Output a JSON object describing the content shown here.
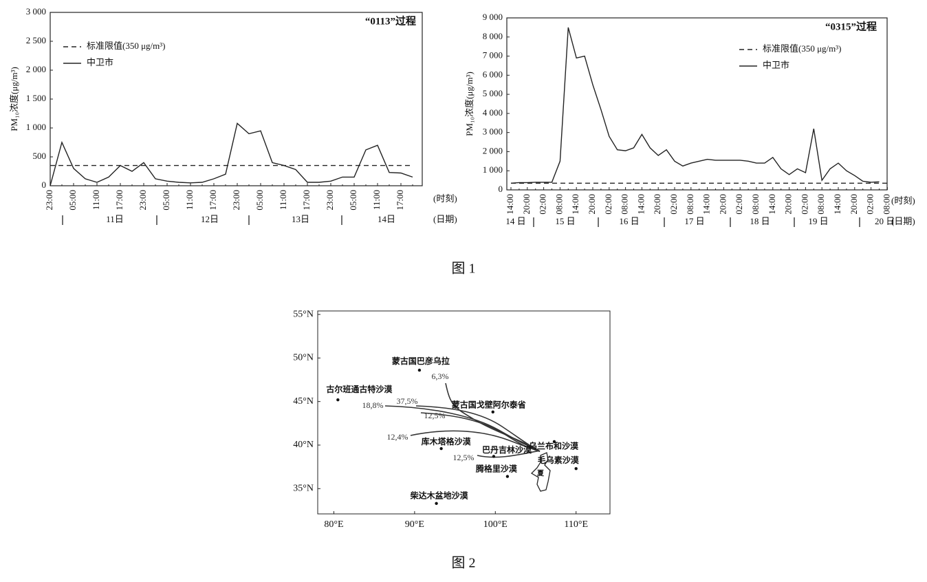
{
  "chart_data": [
    {
      "type": "line",
      "title": "“0113”过程",
      "ylabel": "PM₁₀浓度(μg/m³)",
      "xlabel": "(时刻)",
      "date_label": "(日期)",
      "dates": [
        "11日",
        "12日",
        "13日",
        "14日"
      ],
      "categories": [
        "23:00",
        null,
        "05:00",
        null,
        "11:00",
        null,
        "17:00",
        null,
        "23:00",
        null,
        "05:00",
        null,
        "11:00",
        null,
        "17:00",
        null,
        "23:00",
        null,
        "05:00",
        null,
        "11:00",
        null,
        "17:00",
        null,
        "23:00",
        null,
        "05:00",
        null,
        "11:00",
        null,
        "17:00",
        null
      ],
      "series": [
        {
          "name": "标准限值(350 μg/m³)",
          "color": "#222",
          "dashed": true,
          "values": [
            350,
            350,
            350,
            350,
            350,
            350,
            350,
            350,
            350,
            350,
            350,
            350,
            350,
            350,
            350,
            350,
            350,
            350,
            350,
            350,
            350,
            350,
            350,
            350,
            350,
            350,
            350,
            350,
            350,
            350,
            350,
            350
          ]
        },
        {
          "name": "中卫市",
          "color": "#222",
          "dashed": false,
          "values": [
            0,
            750,
            300,
            120,
            60,
            150,
            350,
            250,
            400,
            120,
            80,
            60,
            50,
            60,
            120,
            200,
            1080,
            900,
            950,
            400,
            350,
            280,
            60,
            60,
            80,
            150,
            150,
            620,
            700,
            230,
            220,
            150
          ]
        }
      ],
      "ylim": [
        0,
        3000
      ],
      "yticks": [
        0,
        500,
        {
          "value": 1000,
          "label": "1 000"
        },
        {
          "value": 1500,
          "label": "1 500"
        },
        {
          "value": 2000,
          "label": "2 000"
        },
        {
          "value": 2500,
          "label": "2 500"
        },
        {
          "value": 3000,
          "label": "3 000"
        }
      ]
    },
    {
      "type": "line",
      "title": "“0315”过程",
      "ylabel": "PM₁₀浓度(μg/m³)",
      "xlabel": "(时刻)",
      "date_label": "(日期)",
      "dates": [
        "14 日",
        "15 日",
        "16 日",
        "17 日",
        "18 日",
        "19 日",
        "20 日"
      ],
      "categories": [
        "14:00",
        null,
        "20:00",
        null,
        "02:00",
        null,
        "08:00",
        null,
        "14:00",
        null,
        "20:00",
        null,
        "02:00",
        null,
        "08:00",
        null,
        "14:00",
        null,
        "20:00",
        null,
        "02:00",
        null,
        "08:00",
        null,
        "14:00",
        null,
        "20:00",
        null,
        "02:00",
        null,
        "08:00",
        null,
        "14:00",
        null,
        "20:00",
        null,
        "02:00",
        null,
        "08:00",
        null,
        "14:00",
        null,
        "20:00",
        null,
        "02:00",
        null,
        "08:00"
      ],
      "series": [
        {
          "name": "标准限值(350 μg/m³)",
          "color": "#222",
          "dashed": true,
          "values": [
            350,
            350,
            350,
            350,
            350,
            350,
            350,
            350,
            350,
            350,
            350,
            350,
            350,
            350,
            350,
            350,
            350,
            350,
            350,
            350,
            350,
            350,
            350,
            350,
            350,
            350,
            350,
            350,
            350,
            350,
            350,
            350,
            350,
            350,
            350,
            350,
            350,
            350,
            350,
            350,
            350,
            350,
            350,
            350,
            350,
            350,
            350
          ]
        },
        {
          "name": "中卫市",
          "color": "#222",
          "dashed": false,
          "values": [
            350,
            380,
            380,
            400,
            400,
            400,
            1500,
            8500,
            6900,
            7000,
            5500,
            4200,
            2800,
            2100,
            2050,
            2200,
            2900,
            2200,
            1800,
            2100,
            1500,
            1250,
            1400,
            1500,
            1600,
            1550,
            1550,
            1550,
            1550,
            1500,
            1400,
            1400,
            1700,
            1100,
            800,
            1100,
            900,
            3200,
            500,
            1100,
            1400,
            1000,
            750,
            450,
            400,
            420,
            null
          ]
        }
      ],
      "ylim": [
        0,
        9000
      ],
      "yticks": [
        0,
        {
          "value": 1000,
          "label": "1 000"
        },
        {
          "value": 2000,
          "label": "2 000"
        },
        {
          "value": 3000,
          "label": "3 000"
        },
        {
          "value": 4000,
          "label": "4 000"
        },
        {
          "value": 5000,
          "label": "5 000"
        },
        {
          "value": 6000,
          "label": "6 000"
        },
        {
          "value": 7000,
          "label": "7 000"
        },
        {
          "value": 8000,
          "label": "8 000"
        },
        {
          "value": 9000,
          "label": "9 000"
        }
      ]
    }
  ],
  "figure1_caption": "图 1",
  "figure2_caption": "图 2",
  "map": {
    "xlim": [
      78,
      114.2
    ],
    "ylim": [
      32.1,
      55.4
    ],
    "xticks": [
      {
        "value": 80,
        "label": "80°E"
      },
      {
        "value": 90,
        "label": "90°E"
      },
      {
        "value": 100,
        "label": "100°E"
      },
      {
        "value": 110,
        "label": "110°E"
      }
    ],
    "yticks": [
      {
        "value": 35,
        "label": "35°N"
      },
      {
        "value": 40,
        "label": "40°N"
      },
      {
        "value": 45,
        "label": "45°N"
      },
      {
        "value": 50,
        "label": "50°N"
      },
      {
        "value": 55,
        "label": "55°N"
      }
    ],
    "places": [
      {
        "name": "蒙古国巴彦乌拉",
        "lon": 90.6,
        "lat": 48.6
      },
      {
        "name": "古尔班通古特沙漠",
        "lon": 80.5,
        "lat": 45.2
      },
      {
        "name": "蒙古国戈壁阿尔泰省",
        "lon": 99.7,
        "lat": 43.8
      },
      {
        "name": "库木塔格沙漠",
        "lon": 93.3,
        "lat": 39.6
      },
      {
        "name": "乌兰布和沙漠",
        "lon": 107.3,
        "lat": 40.4
      },
      {
        "name": "巴丹吉林沙漠",
        "lon": 99.8,
        "lat": 38.7
      },
      {
        "name": "毛乌素沙漠",
        "lon": 110,
        "lat": 37.3
      },
      {
        "name": "腾格里沙漠",
        "lon": 101.5,
        "lat": 36.4
      },
      {
        "name": "柴达木盆地沙漠",
        "lon": 92.7,
        "lat": 33.3
      }
    ],
    "region_label": "夏",
    "trajectories": [
      "6,3%",
      "37,5%",
      "18,8%",
      "12,5%",
      "12,4%",
      "12,5%"
    ]
  }
}
